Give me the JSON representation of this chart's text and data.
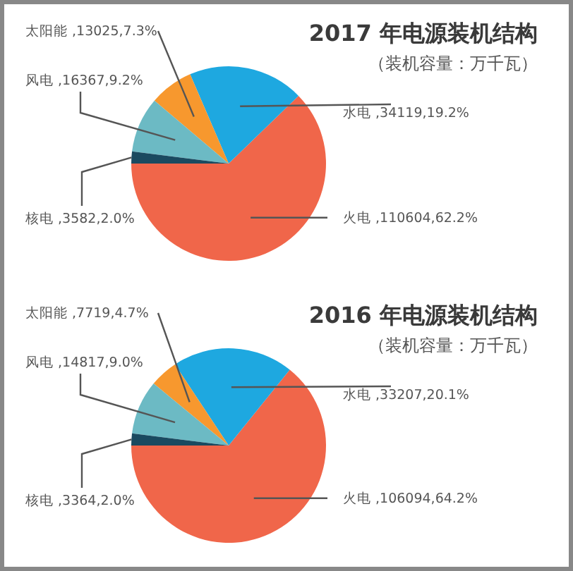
{
  "chart_data": [
    {
      "type": "pie",
      "title": "2017 年电源装机结构",
      "subtitle": "（装机容量：万千瓦）",
      "categories": [
        "火电",
        "水电",
        "太阳能",
        "风电",
        "核电"
      ],
      "values": [
        62.2,
        19.2,
        7.3,
        9.2,
        2.0
      ],
      "value_labels": [
        ",110604,62.2%",
        ",34119,19.2%",
        ",13025,7.3%",
        ",16367,9.2%",
        ",3582,2.0%"
      ],
      "colors": [
        "#f0664a",
        "#1ea8e0",
        "#f7982e",
        "#6cbac4",
        "#1a4a60"
      ]
    },
    {
      "type": "pie",
      "title": "2016 年电源装机结构",
      "subtitle": "（装机容量：万千瓦）",
      "categories": [
        "火电",
        "水电",
        "太阳能",
        "风电",
        "核电"
      ],
      "values": [
        64.2,
        20.1,
        4.7,
        9.0,
        2.0
      ],
      "value_labels": [
        ",106094,64.2%",
        ",33207,20.1%",
        ",7719,4.7%",
        ",14817,9.0%",
        ",3364,2.0%"
      ],
      "colors": [
        "#f0664a",
        "#1ea8e0",
        "#f7982e",
        "#6cbac4",
        "#1a4a60"
      ]
    }
  ]
}
